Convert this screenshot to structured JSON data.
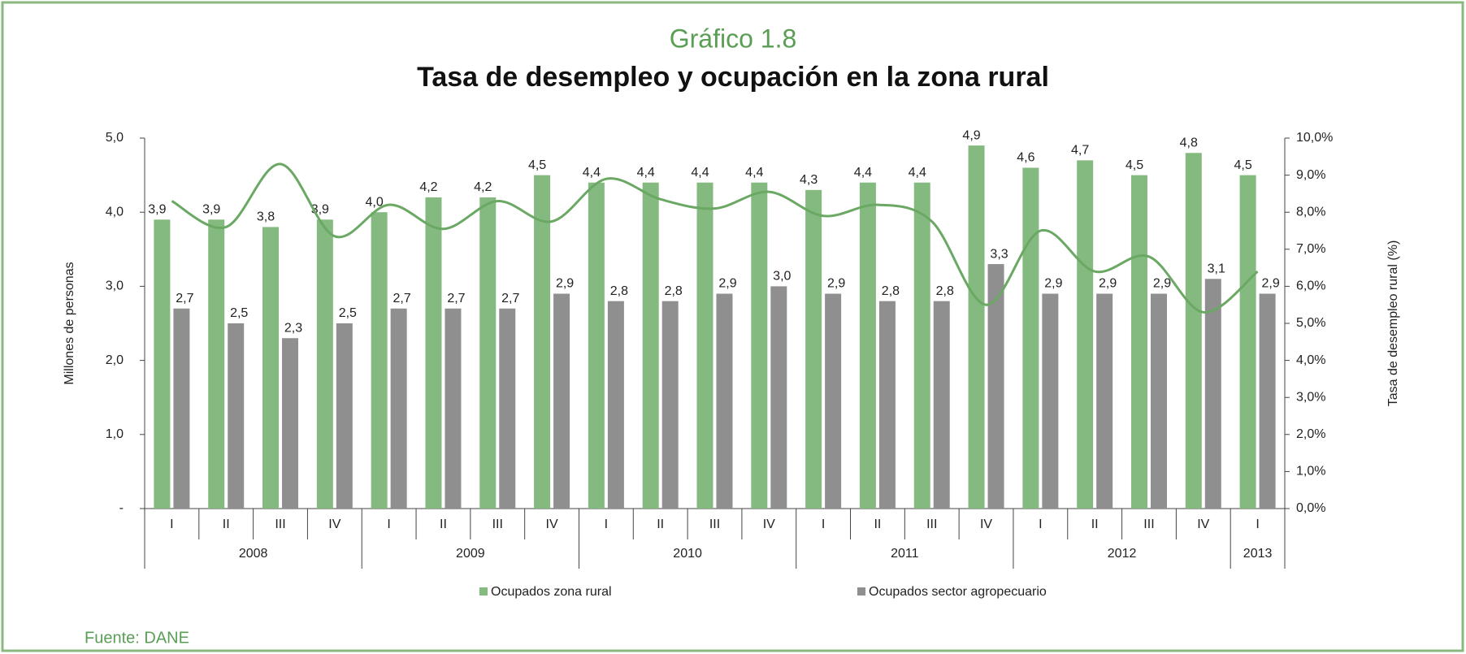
{
  "chart_data": {
    "type": "bar",
    "title": "Gráfico 1.8",
    "subtitle": "Tasa de desempleo y ocupación en la zona rural",
    "y_label": "Millones de personas",
    "y2_label": "Tasa de desempleo rural (%)",
    "source": "Fuente: DANE",
    "groups": [
      {
        "label": "2008",
        "quarters": [
          "I",
          "II",
          "III",
          "IV"
        ]
      },
      {
        "label": "2009",
        "quarters": [
          "I",
          "II",
          "III",
          "IV"
        ]
      },
      {
        "label": "2010",
        "quarters": [
          "I",
          "II",
          "III",
          "IV"
        ]
      },
      {
        "label": "2011",
        "quarters": [
          "I",
          "II",
          "III",
          "IV"
        ]
      },
      {
        "label": "2012",
        "quarters": [
          "I",
          "II",
          "III",
          "IV"
        ]
      },
      {
        "label": "2013",
        "quarters": [
          "I"
        ]
      }
    ],
    "series": [
      {
        "name": "Ocupados zona rural",
        "color": "#84ba7f",
        "values": [
          3.9,
          3.9,
          3.8,
          3.9,
          4.0,
          4.2,
          4.2,
          4.5,
          4.4,
          4.4,
          4.4,
          4.4,
          4.3,
          4.4,
          4.4,
          4.9,
          4.6,
          4.7,
          4.5,
          4.8,
          4.5
        ],
        "value_labels": [
          "3,9",
          "3,9",
          "3,8",
          "3,9",
          "4,0",
          "4,2",
          "4,2",
          "4,5",
          "4,4",
          "4,4",
          "4,4",
          "4,4",
          "4,3",
          "4,4",
          "4,4",
          "4,9",
          "4,6",
          "4,7",
          "4,5",
          "4,8",
          "4,5"
        ]
      },
      {
        "name": "Ocupados sector agropecuario",
        "color": "#8f8f8f",
        "values": [
          2.7,
          2.5,
          2.3,
          2.5,
          2.7,
          2.7,
          2.7,
          2.9,
          2.8,
          2.8,
          2.9,
          3.0,
          2.9,
          2.8,
          2.8,
          3.3,
          2.9,
          2.9,
          2.9,
          3.1,
          2.9
        ],
        "value_labels": [
          "2,7",
          "2,5",
          "2,3",
          "2,5",
          "2,7",
          "2,7",
          "2,7",
          "2,9",
          "2,8",
          "2,8",
          "2,9",
          "3,0",
          "2,9",
          "2,8",
          "2,8",
          "3,3",
          "2,9",
          "2,9",
          "2,9",
          "3,1",
          "2,9"
        ]
      }
    ],
    "line": {
      "color": "#6aa864",
      "axis": "y2",
      "values": [
        8.3,
        7.6,
        9.3,
        7.35,
        8.2,
        7.55,
        8.3,
        7.75,
        8.9,
        8.35,
        8.1,
        8.55,
        7.9,
        8.2,
        7.75,
        5.5,
        7.5,
        6.4,
        6.8,
        5.3,
        6.4
      ]
    },
    "ylim": [
      0,
      5
    ],
    "yticks": [
      {
        "value": 0,
        "label": "-"
      },
      {
        "value": 1,
        "label": "1,0"
      },
      {
        "value": 2,
        "label": "2,0"
      },
      {
        "value": 3,
        "label": "3,0"
      },
      {
        "value": 4,
        "label": "4,0"
      },
      {
        "value": 5,
        "label": "5,0"
      }
    ],
    "y2lim": [
      0,
      10
    ],
    "y2ticks": [
      {
        "value": 0,
        "label": "0,0%"
      },
      {
        "value": 1,
        "label": "1,0%"
      },
      {
        "value": 2,
        "label": "2,0%"
      },
      {
        "value": 3,
        "label": "3,0%"
      },
      {
        "value": 4,
        "label": "4,0%"
      },
      {
        "value": 5,
        "label": "5,0%"
      },
      {
        "value": 6,
        "label": "6,0%"
      },
      {
        "value": 7,
        "label": "7,0%"
      },
      {
        "value": 8,
        "label": "8,0%"
      },
      {
        "value": 9,
        "label": "9,0%"
      },
      {
        "value": 10,
        "label": "10,0%"
      }
    ],
    "grid": false
  }
}
